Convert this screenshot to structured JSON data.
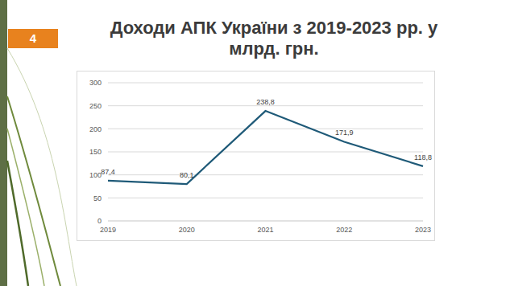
{
  "chart_data": {
    "type": "line",
    "title": "Доходи АПК України з 2019-2023 рр. у млрд. грн.",
    "annotations": [
      "4"
    ],
    "categories": [
      "2019",
      "2020",
      "2021",
      "2022",
      "2023"
    ],
    "values": [
      87.4,
      80.1,
      238.8,
      171.9,
      118.8
    ],
    "value_labels": [
      "87,4",
      "80,1",
      "238,8",
      "171,9",
      "118,8"
    ],
    "color": "#1f5a78",
    "ylim": [
      0,
      300
    ],
    "yticks": [
      0,
      50,
      100,
      150,
      200,
      250,
      300
    ],
    "grid": true,
    "data_labels": true
  }
}
